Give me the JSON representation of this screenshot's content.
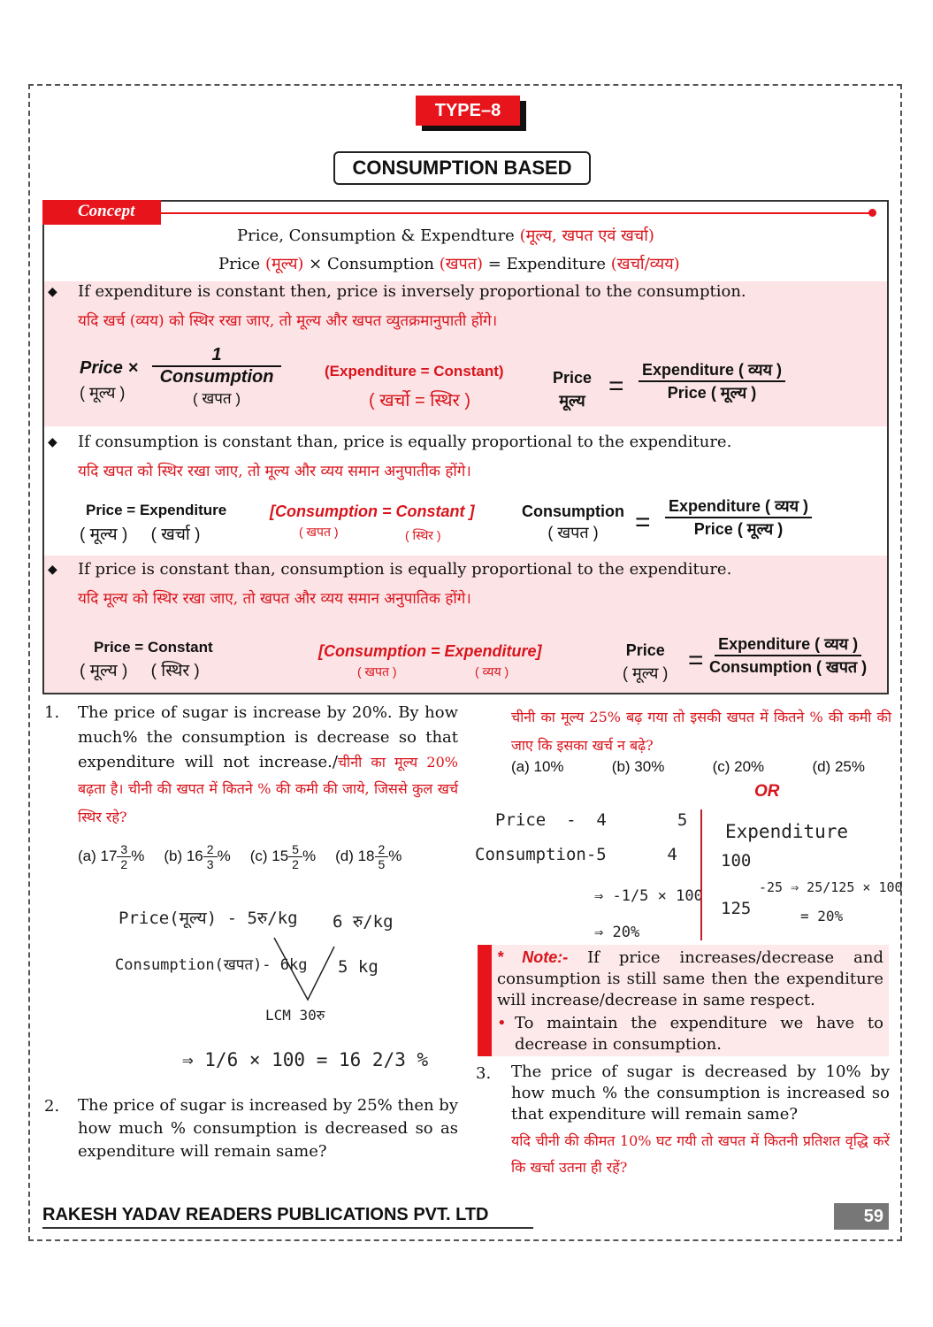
{
  "header": {
    "type_badge": "TYPE–8",
    "section_title": "CONSUMPTION BASED"
  },
  "concept": {
    "tab": "Concept",
    "line1": "Price, Consumption &  Expendture",
    "line1_hi": "(मूल्य, खपत एवं खर्चा)",
    "line2_a": "Price",
    "line2_a_hi": "(मूल्य)",
    "line2_b": "× Consumption",
    "line2_b_hi": "(खपत)",
    "line2_c": "=  Expenditure",
    "line2_c_hi": "(खर्चा/व्यय)",
    "rules": [
      {
        "en": "If expenditure is constant then, price is inversely proportional to the consumption.",
        "hi": "यदि खर्च (व्यय) को स्थिर रखा जाए, तो मूल्य और खपत व्युतक्रमानुपाती होंगे।",
        "f1": {
          "lhs": "Price ×",
          "lhs_hi": "( मूल्य )",
          "num": "1",
          "den": "Consumption",
          "den_hi": "( खपत )"
        },
        "cond": "(Expenditure = Constant)",
        "cond_hi": "( खर्चो  =  स्थिर )",
        "f2": {
          "lhs": "Price",
          "lhs_hi": "मूल्य",
          "num": "Expenditure ( व्यय )",
          "den": "Price ( मूल्य )"
        }
      },
      {
        "en": "If consumption is constant than, price is equally proportional to the expenditure.",
        "hi": "यदि खपत को स्थिर रखा जाए, तो मूल्य और व्यय समान अनुपातीक होंगे।",
        "f1": {
          "lhs": "Price = Expenditure",
          "lhs_hi": "( मूल्य )     ( खर्चा )"
        },
        "cond": "[Consumption  = Constant ]",
        "cond_hi_a": "( खपत )",
        "cond_hi_b": "( स्थिर )",
        "f2": {
          "lhs": "Consumption",
          "lhs_hi": "( खपत )",
          "num": "Expenditure ( व्यय )",
          "den": "Price ( मूल्य )"
        }
      },
      {
        "en": "If price is constant than, consumption is equally proportional to the expenditure.",
        "hi": "यदि मूल्य को स्थिर रखा जाए, तो खपत और व्यय समान अनुपातिक होंगे।",
        "f1": {
          "lhs": "Price = Constant",
          "lhs_hi": "( मूल्य )     ( स्थिर )"
        },
        "cond": "[Consumption  = Expenditure]",
        "cond_hi_a": "( खपत )",
        "cond_hi_b": "( व्यय )",
        "f2": {
          "lhs": "Price",
          "lhs_hi": "( मूल्य )",
          "num": "Expenditure ( व्यय )",
          "den": "Consumption ( खपत )"
        }
      }
    ]
  },
  "q1": {
    "num": "1.",
    "en": "The price of sugar is increase by 20%. By how much% the consumption is decrease so that expenditure will not increase./",
    "hi_a": "चीनी का मूल्य 20%",
    "hi_b": "बढ़ता है। चीनी की खपत में कितने % की कमी की जाये, जिससे कुल खर्च स्थिर रहे?",
    "options": [
      {
        "l": "(a) 17",
        "n": "3",
        "d": "2"
      },
      {
        "l": "(b) 16",
        "n": "2",
        "d": "3"
      },
      {
        "l": "(c) 15",
        "n": "5",
        "d": "2"
      },
      {
        "l": "(d) 18",
        "n": "2",
        "d": "5"
      }
    ],
    "work": {
      "price": "Price(मूल्य) - 5रु/kg",
      "price2": "6 रु/kg",
      "cons": "Consumption(खपत)- 6kg",
      "cons2": "5 kg",
      "lcm": "LCM  30रु",
      "result": "⇒  1/6 × 100 = 16 2/3 %"
    }
  },
  "q2": {
    "num": "2.",
    "en": "The price of sugar is increased by 25% then by how much % consumption is decreased so as expenditure will remain same?",
    "hi": "चीनी का मूल्य 25% बढ़ गया तो इसकी खपत में कितने % की कमी की जाए कि इसका खर्च न बढ़े?",
    "options": [
      "(a) 10%",
      "(b) 30%",
      "(c) 20%",
      "(d) 25%"
    ],
    "or": "OR",
    "work_left": [
      "Price  -  4       5",
      "Consumption-5      4",
      "⇒ -1/5 × 100",
      "⇒ 20%"
    ],
    "work_right": [
      "Expenditure",
      "100",
      "125",
      "-25 ⇒ 25/125 × 100",
      "= 20%"
    ]
  },
  "note": {
    "label": "* Note:-",
    "text": " If price increases/decrease and consumption is still same then the expenditure will increase/decrease in same respect.",
    "bullet": "To maintain the expenditure we have to decrease in consumption."
  },
  "q3": {
    "num": "3.",
    "en": "The price of sugar is decreased by 10% by how much % the consumption is increased so that expenditure will remain same?",
    "hi": "यदि चीनी की कीमत 10% घट गयी तो खपत में कितनी प्रतिशत वृद्धि करें कि खर्चा उतना ही रहें?"
  },
  "footer": {
    "publisher": "RAKESH YADAV READERS PUBLICATIONS PVT. LTD",
    "page": "59"
  },
  "colors": {
    "accent": "#e8141c",
    "pink": "#fce4e6"
  }
}
